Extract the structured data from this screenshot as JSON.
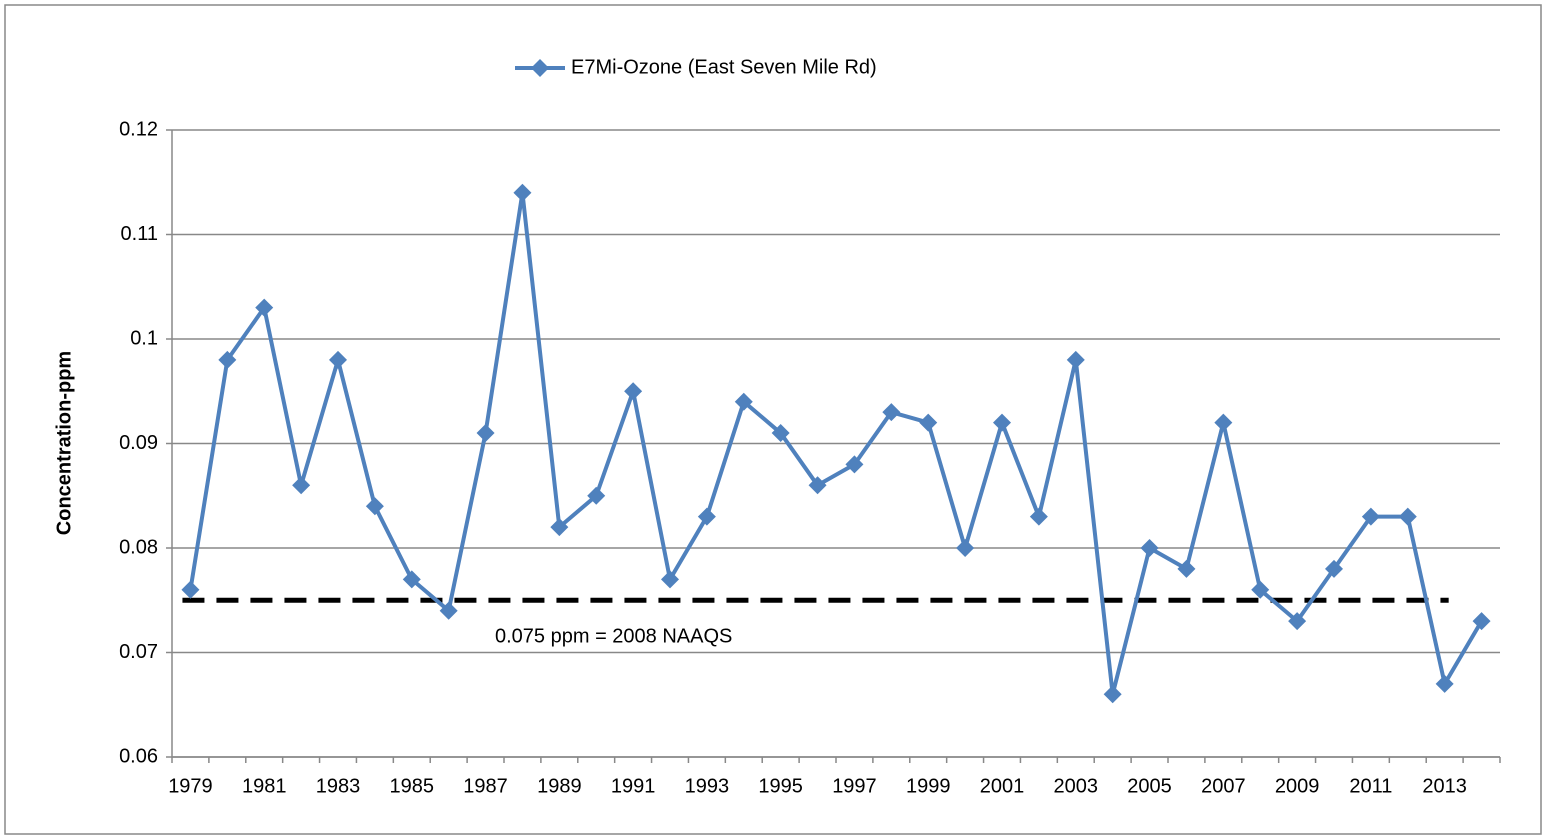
{
  "chart_data": {
    "type": "line",
    "y_axis_label": "Concentration-ppm",
    "categories": [
      "1979",
      null,
      "1981",
      null,
      "1983",
      null,
      "1985",
      null,
      "1987",
      null,
      "1989",
      null,
      "1991",
      null,
      "1993",
      null,
      "1995",
      null,
      "1997",
      null,
      "1999",
      null,
      "2001",
      null,
      "2003",
      null,
      "2005",
      null,
      "2007",
      null,
      "2009",
      null,
      "2011",
      null,
      "2013",
      null
    ],
    "series": [
      {
        "name": "E7Mi-Ozone (East Seven Mile Rd)",
        "color": "#4f81bd",
        "values": [
          0.076,
          0.098,
          0.103,
          0.086,
          0.098,
          0.084,
          0.077,
          0.074,
          0.091,
          0.114,
          0.082,
          0.085,
          0.095,
          0.077,
          0.083,
          0.094,
          0.091,
          0.086,
          0.088,
          0.093,
          0.092,
          0.08,
          0.092,
          0.083,
          0.098,
          0.066,
          0.08,
          0.078,
          0.092,
          0.076,
          0.073,
          0.078,
          0.083,
          0.083,
          0.067,
          0.073
        ]
      }
    ],
    "reference_line": {
      "value": 0.075,
      "label": "0.075 ppm = 2008 NAAQS",
      "color": "#000000"
    },
    "ylim": [
      0.06,
      0.12
    ],
    "yticks": [
      0.06,
      0.07,
      0.08,
      0.09,
      0.1,
      0.11,
      0.12
    ],
    "grid": true,
    "legend": "top"
  }
}
